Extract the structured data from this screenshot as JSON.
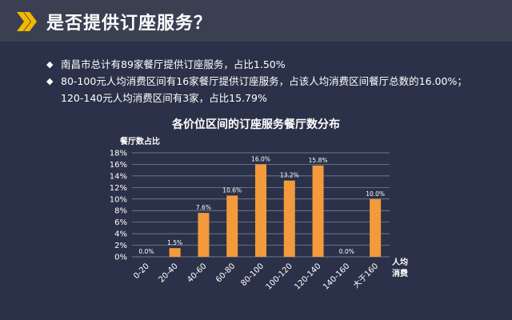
{
  "header": {
    "title": "是否提供订座服务？",
    "icon": "double-chevron-right-icon",
    "accent_color": "#f5b800"
  },
  "bullets": [
    {
      "lines": [
        "南昌市总计有89家餐厅提供订座服务，占比1.50%"
      ]
    },
    {
      "lines": [
        "80-100元人均消费区间有16家餐厅提供订座服务，占该人均消费区间餐厅总数的16.00%；",
        "120-140元人均消费区间有3家，占比15.79%"
      ]
    }
  ],
  "bullet_mark": "◆",
  "chart_data": {
    "type": "bar",
    "title": "各价位区间的订座服务餐厅数分布",
    "ylabel": "餐厅数占比",
    "xlabel_lines": [
      "人均",
      "消费"
    ],
    "categories": [
      "0-20",
      "20-40",
      "40-60",
      "60-80",
      "80-100",
      "100-120",
      "120-140",
      "140-160",
      "大于160"
    ],
    "values": [
      0.0,
      1.5,
      7.6,
      10.6,
      16.0,
      13.2,
      15.8,
      0.0,
      10.0
    ],
    "data_labels": [
      "0.0%",
      "1.5%",
      "7.6%",
      "10.6%",
      "16.0%",
      "13.2%",
      "15.8%",
      "0.0%",
      "10.0%"
    ],
    "ylim": [
      0,
      18
    ],
    "yticks": [
      0,
      2,
      4,
      6,
      8,
      10,
      12,
      14,
      16,
      18
    ],
    "ytick_labels": [
      "0%",
      "2%",
      "4%",
      "6%",
      "8%",
      "10%",
      "12%",
      "14%",
      "16%",
      "18%"
    ],
    "grid": true,
    "bar_color": "#f39a3d"
  }
}
